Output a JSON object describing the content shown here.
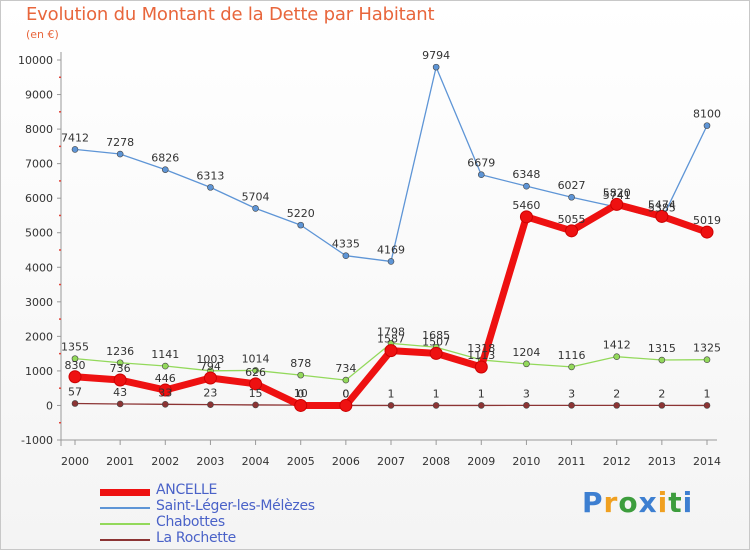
{
  "title": "Evolution du Montant de la Dette par Habitant",
  "subtitle": "(en €)",
  "brand": "Proxiti",
  "chart_data": {
    "type": "line",
    "title": "Evolution du Montant de la Dette par Habitant",
    "subtitle": "(en €)",
    "x": [
      "2000",
      "2001",
      "2002",
      "2003",
      "2004",
      "2005",
      "2006",
      "2007",
      "2008",
      "2009",
      "2010",
      "2011",
      "2012",
      "2013",
      "2014"
    ],
    "ylim": [
      -1000,
      10000
    ],
    "yticks": [
      -1000,
      0,
      1000,
      2000,
      3000,
      4000,
      5000,
      6000,
      7000,
      8000,
      9000,
      10000
    ],
    "grid": false,
    "legend_position": "bottom-left",
    "series": [
      {
        "name": "ANCELLE",
        "color": "#ee1111",
        "width": 7,
        "marker_radius": 6,
        "values": [
          830,
          736,
          446,
          794,
          626,
          0,
          0,
          1587,
          1507,
          1113,
          5460,
          5055,
          5820,
          5474,
          5019
        ],
        "labels": [
          "830",
          "736",
          "446",
          "794",
          "626",
          "0",
          "0",
          "1587",
          "1507",
          "1113",
          "5460",
          "5055",
          "5820",
          "5474",
          "5019"
        ]
      },
      {
        "name": "Saint-Léger-les-Mélèzes",
        "color": "#5e95d6",
        "width": 1.3,
        "marker_radius": 3,
        "values": [
          7412,
          7278,
          6826,
          6313,
          5704,
          5220,
          4335,
          4169,
          9794,
          6679,
          6348,
          6027,
          5741,
          5385,
          8100
        ],
        "labels": [
          "7412",
          "7278",
          "6826",
          "6313",
          "5704",
          "5220",
          "4335",
          "4169",
          "9794",
          "6679",
          "6348",
          "6027",
          "5741",
          "5385",
          "8100"
        ]
      },
      {
        "name": "Chabottes",
        "color": "#93d95b",
        "width": 1.3,
        "marker_radius": 3,
        "values": [
          1355,
          1236,
          1141,
          1003,
          1014,
          878,
          734,
          1798,
          1685,
          1318,
          1204,
          1116,
          1412,
          1315,
          1325
        ],
        "labels": [
          "1355",
          "1236",
          "1141",
          "1003",
          "1014",
          "878",
          "734",
          "1798",
          "1685",
          "1318",
          "1204",
          "1116",
          "1412",
          "1315",
          "1325"
        ]
      },
      {
        "name": "La Rochette",
        "color": "#8c3434",
        "width": 1.3,
        "marker_radius": 3,
        "values": [
          57,
          43,
          33,
          23,
          15,
          10,
          0,
          1,
          1,
          1,
          3,
          3,
          2,
          2,
          1
        ],
        "labels": [
          "57",
          "43",
          "33",
          "23",
          "15",
          "10",
          "0",
          "1",
          "1",
          "1",
          "3",
          "3",
          "2",
          "2",
          "1"
        ]
      }
    ]
  },
  "legend": [
    {
      "label": "ANCELLE",
      "color": "#ee1111",
      "thickness": 7
    },
    {
      "label": "Saint-Léger-les-Mélèzes",
      "color": "#5e95d6",
      "thickness": 1.5
    },
    {
      "label": "Chabottes",
      "color": "#93d95b",
      "thickness": 1.5
    },
    {
      "label": "La Rochette",
      "color": "#8c3434",
      "thickness": 1.5
    }
  ]
}
